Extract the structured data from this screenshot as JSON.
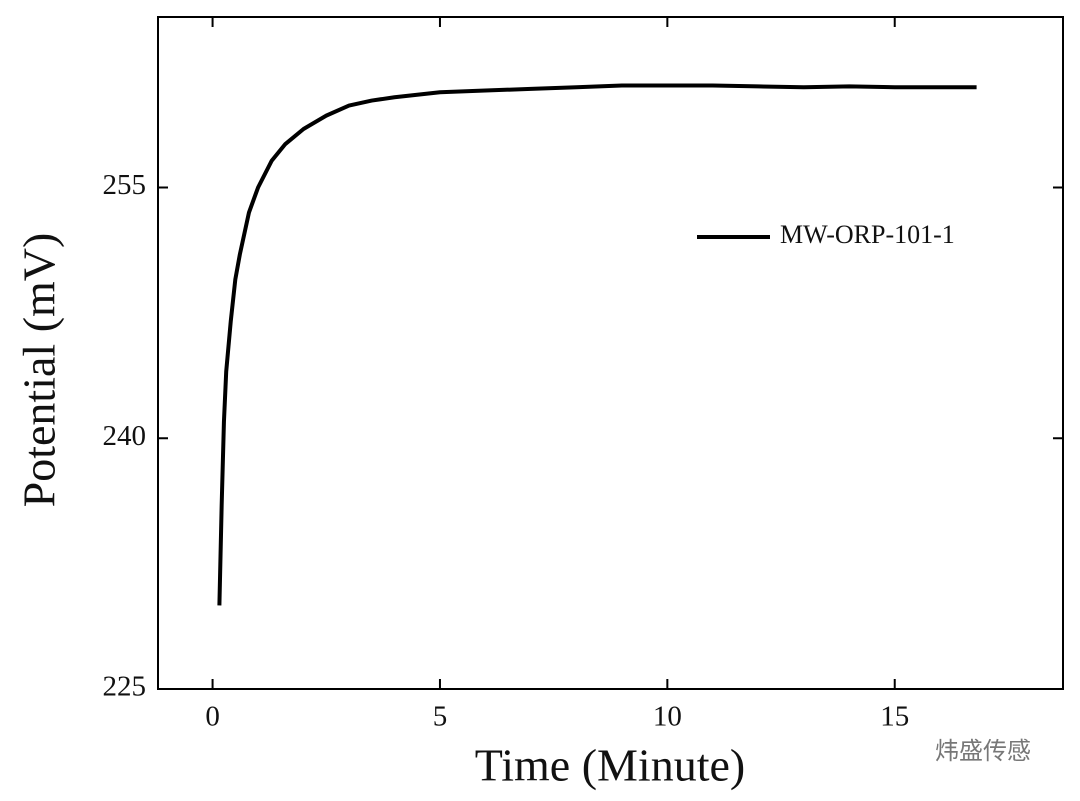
{
  "chart_data": {
    "type": "line",
    "x_label": "Time (Minute)",
    "y_label": "Potential (mV)",
    "xlim": [
      -1.2,
      18.7
    ],
    "xticks": [
      0,
      5,
      10,
      15
    ],
    "ylim": [
      225,
      265.2
    ],
    "yticks": [
      225,
      240,
      255
    ],
    "x": [
      0.15,
      0.2,
      0.25,
      0.3,
      0.4,
      0.5,
      0.6,
      0.8,
      1.0,
      1.3,
      1.6,
      2.0,
      2.5,
      3.0,
      3.5,
      4.0,
      5,
      6,
      7,
      8,
      9,
      10,
      11,
      12,
      13,
      14,
      15,
      16,
      16.8
    ],
    "series": [
      {
        "name": "MW-ORP-101-1",
        "color": "#000000",
        "values": [
          230,
          236,
          241,
          244,
          247,
          249.5,
          251,
          253.5,
          255,
          256.6,
          257.6,
          258.5,
          259.3,
          259.9,
          260.2,
          260.4,
          260.7,
          260.8,
          260.9,
          261,
          261.1,
          261.1,
          261.1,
          261.05,
          261,
          261.05,
          261,
          261,
          261
        ]
      }
    ],
    "legend": "upper right",
    "watermark": "炜盛传感"
  }
}
